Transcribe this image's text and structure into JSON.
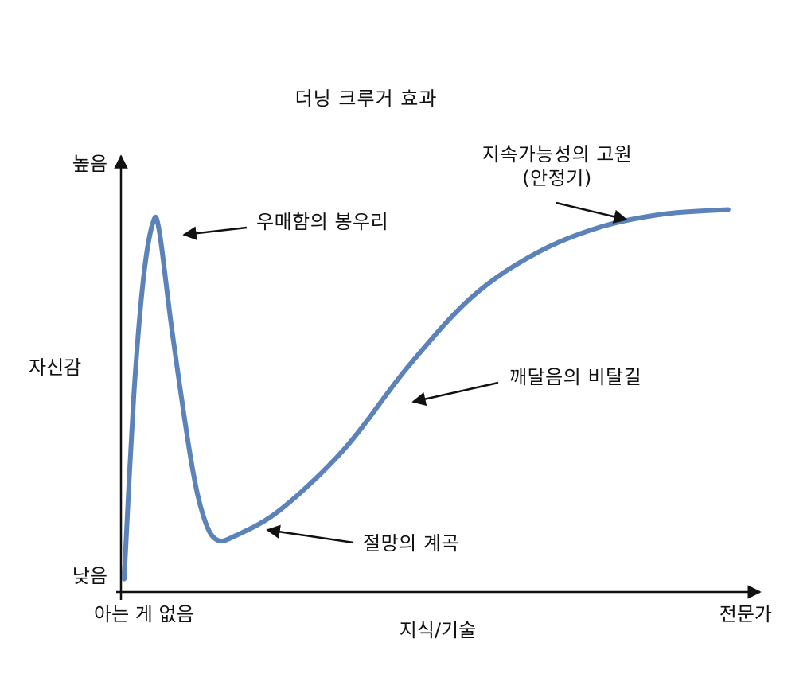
{
  "chart_data": {
    "type": "line",
    "title": "더닝 크루거 효과",
    "xlabel": "지식/기술",
    "ylabel": "자신감",
    "x_ticks": [
      "아는 게 없음",
      "전문가"
    ],
    "y_ticks": [
      "높음",
      "낮음"
    ],
    "xlim": [
      0,
      100
    ],
    "ylim": [
      0,
      100
    ],
    "grid": false,
    "legend": "none",
    "series": [
      {
        "color": "#5b82b9",
        "points": [
          [
            0.5,
            3
          ],
          [
            2,
            45
          ],
          [
            3.5,
            72
          ],
          [
            5,
            85
          ],
          [
            6,
            83
          ],
          [
            8,
            60
          ],
          [
            11,
            30
          ],
          [
            13,
            17
          ],
          [
            15,
            12
          ],
          [
            18,
            13
          ],
          [
            25,
            19
          ],
          [
            35,
            33
          ],
          [
            45,
            52
          ],
          [
            55,
            68
          ],
          [
            65,
            78
          ],
          [
            75,
            84
          ],
          [
            85,
            87
          ],
          [
            95,
            88
          ]
        ]
      }
    ],
    "annotations": [
      {
        "lines": [
          "우매함의 봉우리"
        ],
        "target": [
          6,
          83
        ]
      },
      {
        "lines": [
          "절망의 계곡"
        ],
        "target": [
          18,
          13
        ]
      },
      {
        "lines": [
          "깨달음의 비탈길"
        ],
        "target": [
          45,
          52
        ]
      },
      {
        "lines": [
          "지속가능성의 고원",
          "(안정기)"
        ],
        "target": [
          76,
          84
        ]
      }
    ]
  }
}
